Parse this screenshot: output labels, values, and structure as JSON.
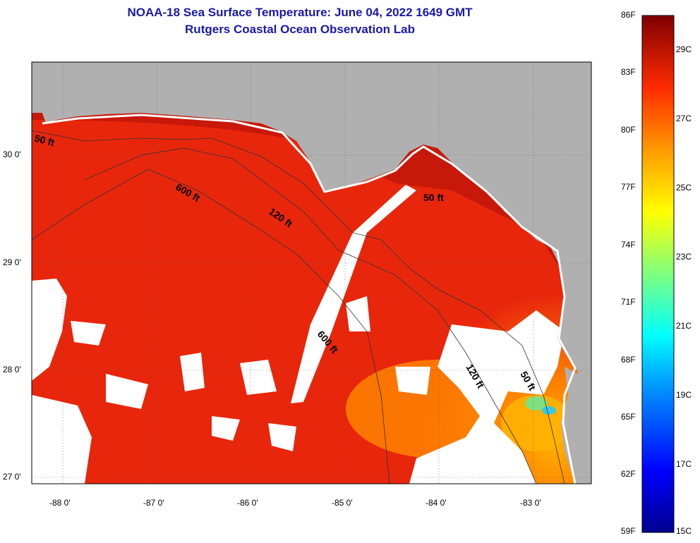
{
  "header": {
    "title_line1": "NOAA-18 Sea Surface Temperature:  June 04, 2022 1649 GMT",
    "title_line2": "Rutgers Coastal Ocean Observation Lab"
  },
  "map": {
    "lat_labels": [
      "30 0'",
      "29 0'",
      "28 0'",
      "27 0'"
    ],
    "lon_labels": [
      "-88 0'",
      "-87 0'",
      "-86 0'",
      "-85 0'",
      "-84 0'",
      "-83 0'"
    ],
    "contours": {
      "ft50_west": "50 ft",
      "ft50_east": "50 ft",
      "ft50_south": "50 ft",
      "ft120_mid": "120 ft",
      "ft120_south": "120 ft",
      "ft600_north": "600 ft",
      "ft600_south": "600 ft"
    },
    "colors": {
      "land": "#b0b0b0",
      "cloud": "#ffffff",
      "sea_warm": "#e8260c"
    }
  },
  "colorbar": {
    "f_labels": [
      "86F",
      "83F",
      "80F",
      "77F",
      "74F",
      "71F",
      "68F",
      "65F",
      "62F",
      "59F"
    ],
    "c_labels": [
      "29C",
      "27C",
      "25C",
      "23C",
      "21C",
      "19C",
      "17C",
      "15C"
    ]
  }
}
